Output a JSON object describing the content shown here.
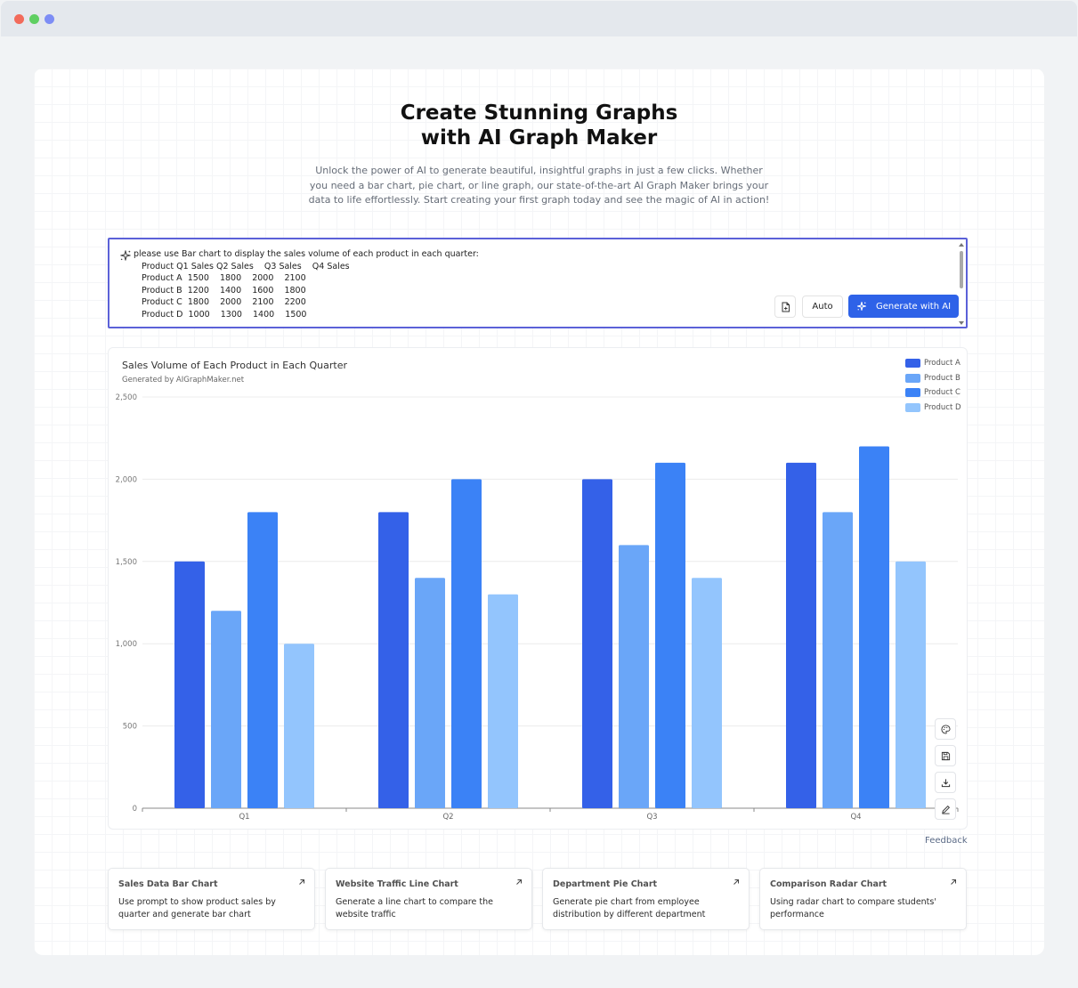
{
  "window": {
    "controls": [
      "close",
      "minimize",
      "maximize"
    ]
  },
  "hero": {
    "title_line1": "Create Stunning Graphs",
    "title_line2": "with AI Graph Maker",
    "intro_line1": "Unlock the power of AI to generate beautiful, insightful graphs in just a few clicks. Whether",
    "intro_line2": "you need a bar chart, pie chart, or line graph, our state-of-the-art AI Graph Maker brings your",
    "intro_line3": "data to life effortlessly. Start creating your first graph today and see the magic of AI in action!"
  },
  "prompt": {
    "text": "please use Bar chart to display the sales volume of each product in each quarter:\n   Product Q1 Sales Q2 Sales    Q3 Sales    Q4 Sales\n   Product A  1500    1800    2000    2100\n   Product B  1200    1400    1600    1800\n   Product C  1800    2000    2100    2200\n   Product D  1000    1300    1400    1500",
    "icon": "sparkle-icon",
    "file_button_icon": "file-icon",
    "auto_label": "Auto",
    "generate_label": "Generate with AI"
  },
  "chart_data": {
    "type": "bar",
    "title": "Sales Volume of Each Product in Each Quarter",
    "subtitle": "Generated by AIGraphMaker.net",
    "categories": [
      "Q1",
      "Q2",
      "Q3",
      "Q4"
    ],
    "series": [
      {
        "name": "Product A",
        "color": "#3461e8",
        "values": [
          1500,
          1800,
          2000,
          2100
        ]
      },
      {
        "name": "Product B",
        "color": "#6aa6f8",
        "values": [
          1200,
          1400,
          1600,
          1800
        ]
      },
      {
        "name": "Product C",
        "color": "#3b82f6",
        "values": [
          1800,
          2000,
          2100,
          2200
        ]
      },
      {
        "name": "Product D",
        "color": "#93c5fd",
        "values": [
          1000,
          1300,
          1400,
          1500
        ]
      }
    ],
    "ylim": [
      0,
      2500
    ],
    "yticks": [
      "0",
      "500",
      "1,000",
      "1,500",
      "2,000",
      "2,500"
    ],
    "ytick_values": [
      0,
      500,
      1000,
      1500,
      2000,
      2500
    ],
    "grid": true,
    "legend_position": "top-right",
    "xlabel": "",
    "ylabel": ""
  },
  "chart_tools": [
    {
      "name": "palette-icon"
    },
    {
      "name": "save-icon"
    },
    {
      "name": "download-icon"
    },
    {
      "name": "edit-icon"
    }
  ],
  "feedback_label": "Feedback",
  "examples": [
    {
      "title": "Sales Data Bar Chart",
      "description": "Use prompt to show product sales by quarter and generate bar chart"
    },
    {
      "title": "Website Traffic Line Chart",
      "description": "Generate a line chart to compare the website traffic"
    },
    {
      "title": "Department Pie Chart",
      "description": "Generate pie chart from employee distribution by different department"
    },
    {
      "title": "Comparison Radar Chart",
      "description": "Using radar chart to compare students' performance"
    }
  ]
}
